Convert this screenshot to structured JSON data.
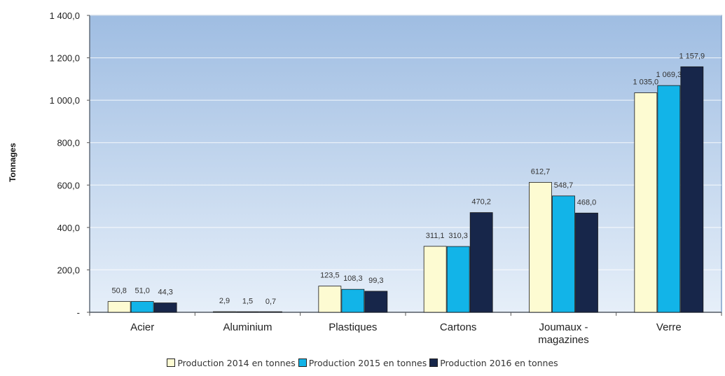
{
  "chart_data": {
    "type": "bar",
    "title": "",
    "xlabel": "",
    "ylabel": "Tonnages",
    "ylim": [
      0,
      1400
    ],
    "yticks": [
      0,
      200,
      400,
      600,
      800,
      1000,
      1200,
      1400
    ],
    "ytick_labels": [
      "-",
      "200,0",
      "400,0",
      "600,0",
      "800,0",
      "1 000,0",
      "1 200,0",
      "1 400,0"
    ],
    "grid": true,
    "legend_position": "bottom",
    "categories": [
      "Acier",
      "Aluminium",
      "Plastiques",
      "Cartons",
      "Joumaux - magazines",
      "Verre"
    ],
    "category_lines": [
      [
        "Acier"
      ],
      [
        "Aluminium"
      ],
      [
        "Plastiques"
      ],
      [
        "Cartons"
      ],
      [
        "Joumaux -",
        "magazines"
      ],
      [
        "Verre"
      ]
    ],
    "series": [
      {
        "name": "Production 2014 en tonnes",
        "color": "#fdfbd2",
        "values": [
          50.8,
          2.9,
          123.5,
          311.1,
          612.7,
          1035.0
        ],
        "labels": [
          "50,8",
          "2,9",
          "123,5",
          "311,1",
          "612,7",
          "1 035,0"
        ]
      },
      {
        "name": "Production 2015 en tonnes",
        "color": "#12b4e8",
        "values": [
          51.0,
          1.5,
          108.3,
          310.3,
          548.7,
          1069.3
        ],
        "labels": [
          "51,0",
          "1,5",
          "108,3",
          "310,3",
          "548,7",
          "1 069,3"
        ]
      },
      {
        "name": "Production 2016 en tonnes",
        "color": "#17264a",
        "values": [
          44.3,
          0.7,
          99.3,
          470.2,
          468.0,
          1157.9
        ],
        "labels": [
          "44,3",
          "0,7",
          "99,3",
          "470,2",
          "468,0",
          "1 157,9"
        ]
      }
    ]
  }
}
